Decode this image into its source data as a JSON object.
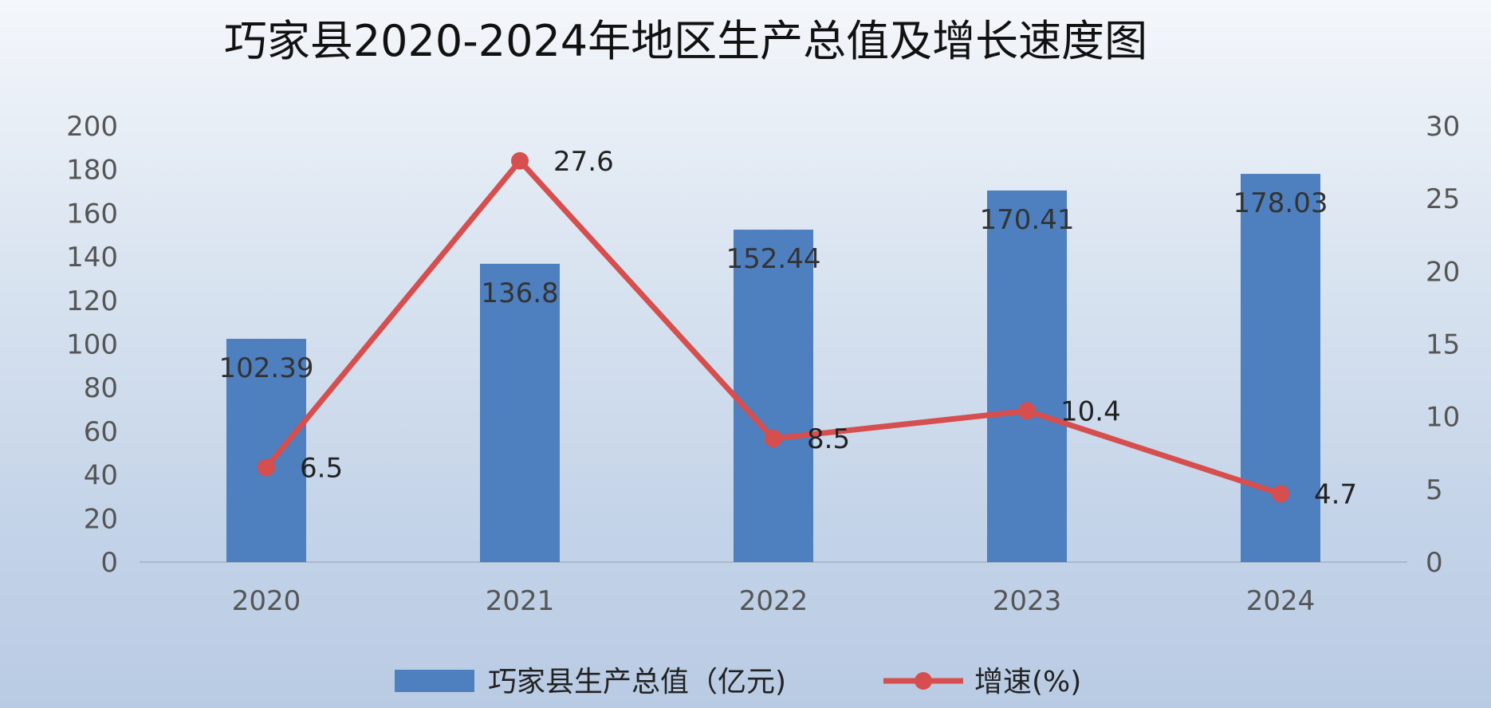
{
  "chart_data": {
    "type": "bar",
    "title": "巧家县2020-2024年地区生产总值及增长速度图",
    "categories": [
      "2020",
      "2021",
      "2022",
      "2023",
      "2024"
    ],
    "series": [
      {
        "name": "巧家县生产总值（亿元)",
        "type": "bar",
        "axis": "left",
        "color": "#4E7FBE",
        "values": [
          102.39,
          136.8,
          152.44,
          170.41,
          178.03
        ],
        "labels": [
          "102.39",
          "136.8",
          "152.44",
          "170.41",
          "178.03"
        ]
      },
      {
        "name": "增速(%)",
        "type": "line",
        "axis": "right",
        "color": "#D64E4E",
        "values": [
          6.5,
          27.6,
          8.5,
          10.4,
          4.7
        ],
        "labels": [
          "6.5",
          "27.6",
          "8.5",
          "10.4",
          "4.7"
        ]
      }
    ],
    "y_left": {
      "min": 0,
      "max": 200,
      "ticks": [
        "0",
        "20",
        "40",
        "60",
        "80",
        "100",
        "120",
        "140",
        "160",
        "180",
        "200"
      ]
    },
    "y_right": {
      "min": 0,
      "max": 30,
      "ticks": [
        "0",
        "5",
        "10",
        "15",
        "20",
        "25",
        "30"
      ]
    },
    "grid": false,
    "legend_position": "bottom",
    "background": "light-blue-gradient"
  }
}
